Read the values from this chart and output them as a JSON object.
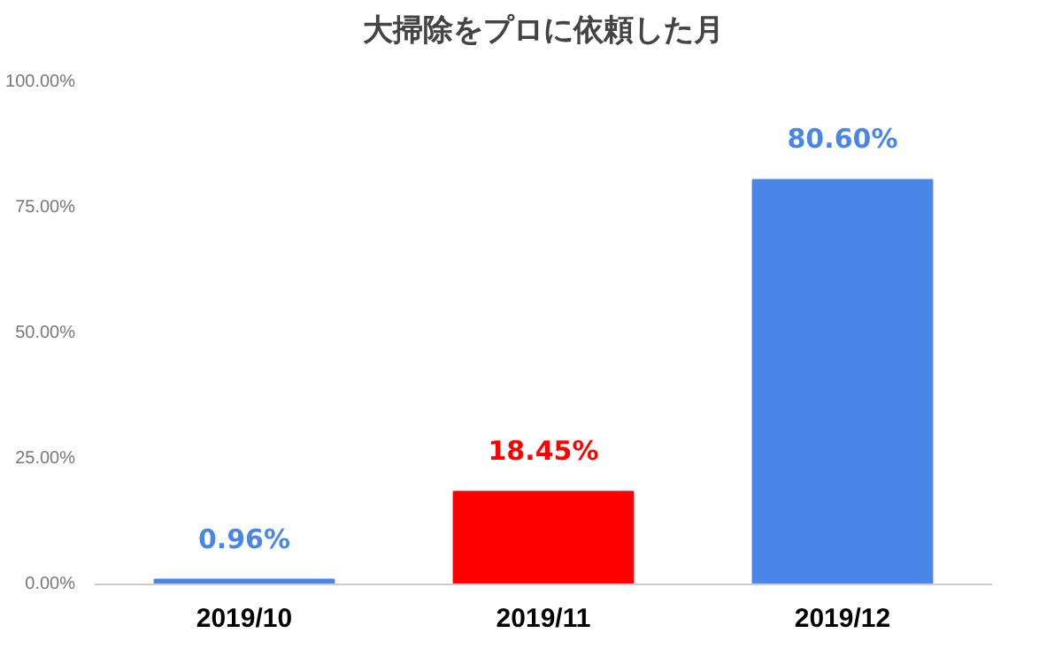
{
  "chart_data": {
    "type": "bar",
    "title": "大掃除をプロに依頼した月",
    "categories": [
      "2019/10",
      "2019/11",
      "2019/12"
    ],
    "values": [
      0.96,
      18.45,
      80.6
    ],
    "colors": [
      "#4a86e8",
      "#ff0000",
      "#4a86e8"
    ],
    "value_labels": [
      "0.96%",
      "18.45%",
      "80.60%"
    ],
    "ylim": [
      0,
      100
    ],
    "yticks": [
      {
        "value": 0,
        "label": "0.00%"
      },
      {
        "value": 25,
        "label": "25.00%"
      },
      {
        "value": 50,
        "label": "50.00%"
      },
      {
        "value": 75,
        "label": "75.00%"
      },
      {
        "value": 100,
        "label": "100.00%"
      }
    ],
    "grid": false
  }
}
